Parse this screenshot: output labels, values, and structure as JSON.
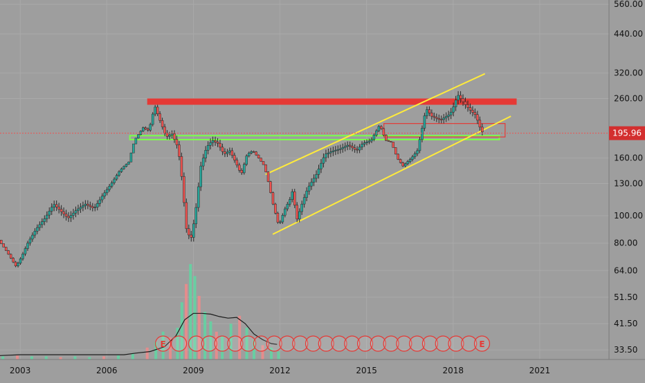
{
  "chart_data": {
    "type": "candlestick",
    "scale": "log",
    "grid": true,
    "colors": {
      "background": "#9e9e9e",
      "grid": "#a9a9a9",
      "up": "#26a69a",
      "down": "#ef5350",
      "wick": "#262626",
      "channel": "#ffeb3b",
      "resistance": "#e53935",
      "support": "#7cff4a",
      "volume_up": "#5fd6a2",
      "volume_down": "#f08a8a",
      "volume_ma": "#1a1a1a",
      "price_label_bg": "#d32f2f",
      "text": "#111111"
    },
    "x_ticks": [
      2003,
      2006,
      2009,
      2012,
      2015,
      2018,
      2021
    ],
    "x_range": [
      2002.3,
      2023.4
    ],
    "y_ticks": [
      "560.00",
      "440.00",
      "320.00",
      "260.00",
      "160.00",
      "130.00",
      "100.00",
      "80.00",
      "64.00",
      "51.50",
      "41.50",
      "33.50"
    ],
    "y_range": [
      31,
      580
    ],
    "last_price": "195.96",
    "last_price_value": 195.96,
    "price_path": [
      [
        2002.3,
        82
      ],
      [
        2002.6,
        74
      ],
      [
        2002.9,
        66
      ],
      [
        2003.1,
        72
      ],
      [
        2003.3,
        80
      ],
      [
        2003.6,
        90
      ],
      [
        2003.9,
        98
      ],
      [
        2004.2,
        110
      ],
      [
        2004.4,
        105
      ],
      [
        2004.7,
        98
      ],
      [
        2005.0,
        105
      ],
      [
        2005.3,
        110
      ],
      [
        2005.6,
        106
      ],
      [
        2005.9,
        118
      ],
      [
        2006.2,
        130
      ],
      [
        2006.5,
        145
      ],
      [
        2006.8,
        155
      ],
      [
        2007.0,
        185
      ],
      [
        2007.3,
        205
      ],
      [
        2007.5,
        200
      ],
      [
        2007.7,
        245
      ],
      [
        2007.9,
        215
      ],
      [
        2008.1,
        190
      ],
      [
        2008.3,
        195
      ],
      [
        2008.5,
        175
      ],
      [
        2008.6,
        150
      ],
      [
        2008.8,
        90
      ],
      [
        2008.95,
        82
      ],
      [
        2009.1,
        100
      ],
      [
        2009.3,
        150
      ],
      [
        2009.5,
        175
      ],
      [
        2009.7,
        185
      ],
      [
        2009.9,
        180
      ],
      [
        2010.1,
        165
      ],
      [
        2010.3,
        170
      ],
      [
        2010.5,
        155
      ],
      [
        2010.7,
        140
      ],
      [
        2010.9,
        165
      ],
      [
        2011.1,
        170
      ],
      [
        2011.3,
        160
      ],
      [
        2011.5,
        150
      ],
      [
        2011.65,
        130
      ],
      [
        2011.8,
        110
      ],
      [
        2012.0,
        92
      ],
      [
        2012.2,
        105
      ],
      [
        2012.4,
        115
      ],
      [
        2012.5,
        125
      ],
      [
        2012.6,
        95
      ],
      [
        2012.8,
        110
      ],
      [
        2013.0,
        125
      ],
      [
        2013.3,
        140
      ],
      [
        2013.6,
        165
      ],
      [
        2013.9,
        170
      ],
      [
        2014.1,
        172
      ],
      [
        2014.4,
        178
      ],
      [
        2014.7,
        170
      ],
      [
        2014.9,
        180
      ],
      [
        2015.2,
        185
      ],
      [
        2015.5,
        210
      ],
      [
        2015.7,
        185
      ],
      [
        2015.9,
        182
      ],
      [
        2016.1,
        160
      ],
      [
        2016.3,
        150
      ],
      [
        2016.6,
        160
      ],
      [
        2016.8,
        170
      ],
      [
        2016.95,
        200
      ],
      [
        2017.1,
        240
      ],
      [
        2017.3,
        225
      ],
      [
        2017.6,
        218
      ],
      [
        2017.9,
        228
      ],
      [
        2018.0,
        235
      ],
      [
        2018.2,
        268
      ],
      [
        2018.4,
        252
      ],
      [
        2018.6,
        238
      ],
      [
        2018.8,
        228
      ],
      [
        2018.95,
        210
      ],
      [
        2019.0,
        198
      ]
    ],
    "volume_bars": [
      [
        2002.4,
        4
      ],
      [
        2002.9,
        5
      ],
      [
        2003.4,
        4
      ],
      [
        2003.9,
        4
      ],
      [
        2004.4,
        3
      ],
      [
        2004.9,
        4
      ],
      [
        2005.4,
        3
      ],
      [
        2005.9,
        4
      ],
      [
        2006.4,
        5
      ],
      [
        2006.9,
        8
      ],
      [
        2007.4,
        15
      ],
      [
        2007.7,
        22
      ],
      [
        2007.95,
        35
      ],
      [
        2008.2,
        28
      ],
      [
        2008.45,
        40
      ],
      [
        2008.6,
        72
      ],
      [
        2008.75,
        95
      ],
      [
        2008.9,
        120
      ],
      [
        2009.05,
        105
      ],
      [
        2009.2,
        80
      ],
      [
        2009.4,
        60
      ],
      [
        2009.6,
        48
      ],
      [
        2009.8,
        35
      ],
      [
        2010.0,
        30
      ],
      [
        2010.3,
        45
      ],
      [
        2010.6,
        55
      ],
      [
        2010.85,
        40
      ],
      [
        2011.1,
        25
      ],
      [
        2011.4,
        18
      ],
      [
        2011.7,
        15
      ],
      [
        2011.95,
        10
      ]
    ],
    "volume_ma": [
      [
        2002.3,
        5
      ],
      [
        2003.0,
        6
      ],
      [
        2004.0,
        6
      ],
      [
        2005.0,
        6
      ],
      [
        2006.0,
        6
      ],
      [
        2006.6,
        6
      ],
      [
        2007.0,
        8
      ],
      [
        2007.5,
        10
      ],
      [
        2008.0,
        16
      ],
      [
        2008.4,
        30
      ],
      [
        2008.7,
        50
      ],
      [
        2009.0,
        58
      ],
      [
        2009.3,
        58
      ],
      [
        2009.6,
        57
      ],
      [
        2009.9,
        54
      ],
      [
        2010.2,
        52
      ],
      [
        2010.5,
        53
      ],
      [
        2010.8,
        45
      ],
      [
        2011.1,
        32
      ],
      [
        2011.4,
        25
      ],
      [
        2011.7,
        20
      ],
      [
        2011.9,
        19
      ]
    ],
    "annotations": {
      "resistance_zone": {
        "x": [
          2007.4,
          2020.2
        ],
        "y": [
          247,
          260
        ]
      },
      "support_zone": {
        "x": [
          2006.8,
          2019.6
        ],
        "y": [
          186,
          192
        ]
      },
      "channel_upper": [
        [
          2011.5,
          140
        ],
        [
          2019.1,
          318
        ]
      ],
      "channel_lower": [
        [
          2011.75,
          86
        ],
        [
          2020.0,
          225
        ]
      ],
      "small_box": {
        "x": [
          2015.6,
          2019.8
        ],
        "y": [
          190,
          212
        ]
      },
      "earnings_marker_label": "E",
      "earnings_markers_x": [
        2007.95,
        2008.5,
        2009.1,
        2009.55,
        2010.0,
        2010.45,
        2010.9,
        2011.35,
        2011.8,
        2012.25,
        2012.7,
        2013.15,
        2013.6,
        2014.05,
        2014.5,
        2014.95,
        2015.4,
        2015.85,
        2016.3,
        2016.75,
        2017.2,
        2017.65,
        2018.1,
        2018.55,
        2019.0
      ],
      "earnings_label_first": "E",
      "earnings_label_last": "E"
    }
  }
}
